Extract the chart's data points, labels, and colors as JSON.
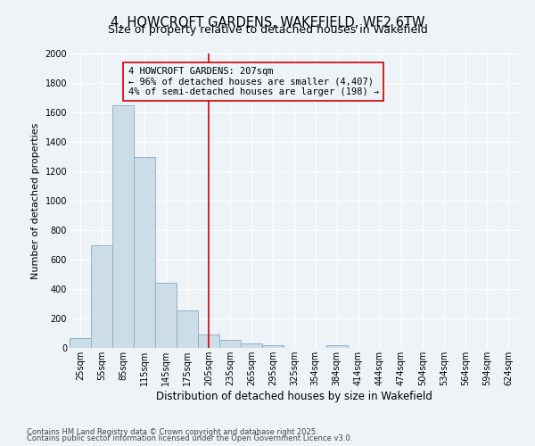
{
  "title_line1": "4, HOWCROFT GARDENS, WAKEFIELD, WF2 6TW",
  "title_line2": "Size of property relative to detached houses in Wakefield",
  "xlabel": "Distribution of detached houses by size in Wakefield",
  "ylabel": "Number of detached properties",
  "footnote1": "Contains HM Land Registry data © Crown copyright and database right 2025.",
  "footnote2": "Contains public sector information licensed under the Open Government Licence v3.0.",
  "annotation_line1": "4 HOWCROFT GARDENS: 207sqm",
  "annotation_line2": "← 96% of detached houses are smaller (4,407)",
  "annotation_line3": "4% of semi-detached houses are larger (198) →",
  "bar_color": "#ccdde8",
  "bar_edge_color": "#88aac4",
  "redline_color": "#cc0000",
  "property_size_bin": 6,
  "redline_x_data": 205,
  "categories": [
    "25sqm",
    "55sqm",
    "85sqm",
    "115sqm",
    "145sqm",
    "175sqm",
    "205sqm",
    "235sqm",
    "265sqm",
    "295sqm",
    "325sqm",
    "354sqm",
    "384sqm",
    "414sqm",
    "444sqm",
    "474sqm",
    "504sqm",
    "534sqm",
    "564sqm",
    "594sqm",
    "624sqm"
  ],
  "bin_starts": [
    10,
    40,
    70,
    100,
    130,
    160,
    190,
    220,
    250,
    280,
    310,
    339,
    369,
    399,
    429,
    459,
    489,
    519,
    549,
    579,
    609
  ],
  "bin_width": 30,
  "values": [
    65,
    700,
    1650,
    1300,
    440,
    255,
    90,
    55,
    30,
    20,
    0,
    0,
    20,
    0,
    0,
    0,
    0,
    0,
    0,
    0,
    0
  ],
  "ylim": [
    0,
    2000
  ],
  "yticks": [
    0,
    200,
    400,
    600,
    800,
    1000,
    1200,
    1400,
    1600,
    1800,
    2000
  ],
  "xlim_left": 10,
  "xlim_right": 639,
  "bg_color": "#eef3f8",
  "grid_color": "#ffffff",
  "title_fontsize": 10.5,
  "subtitle_fontsize": 9.0,
  "ylabel_fontsize": 8.0,
  "xlabel_fontsize": 8.5,
  "tick_fontsize": 7.0,
  "annot_fontsize": 7.5,
  "footnote_fontsize": 6.0
}
